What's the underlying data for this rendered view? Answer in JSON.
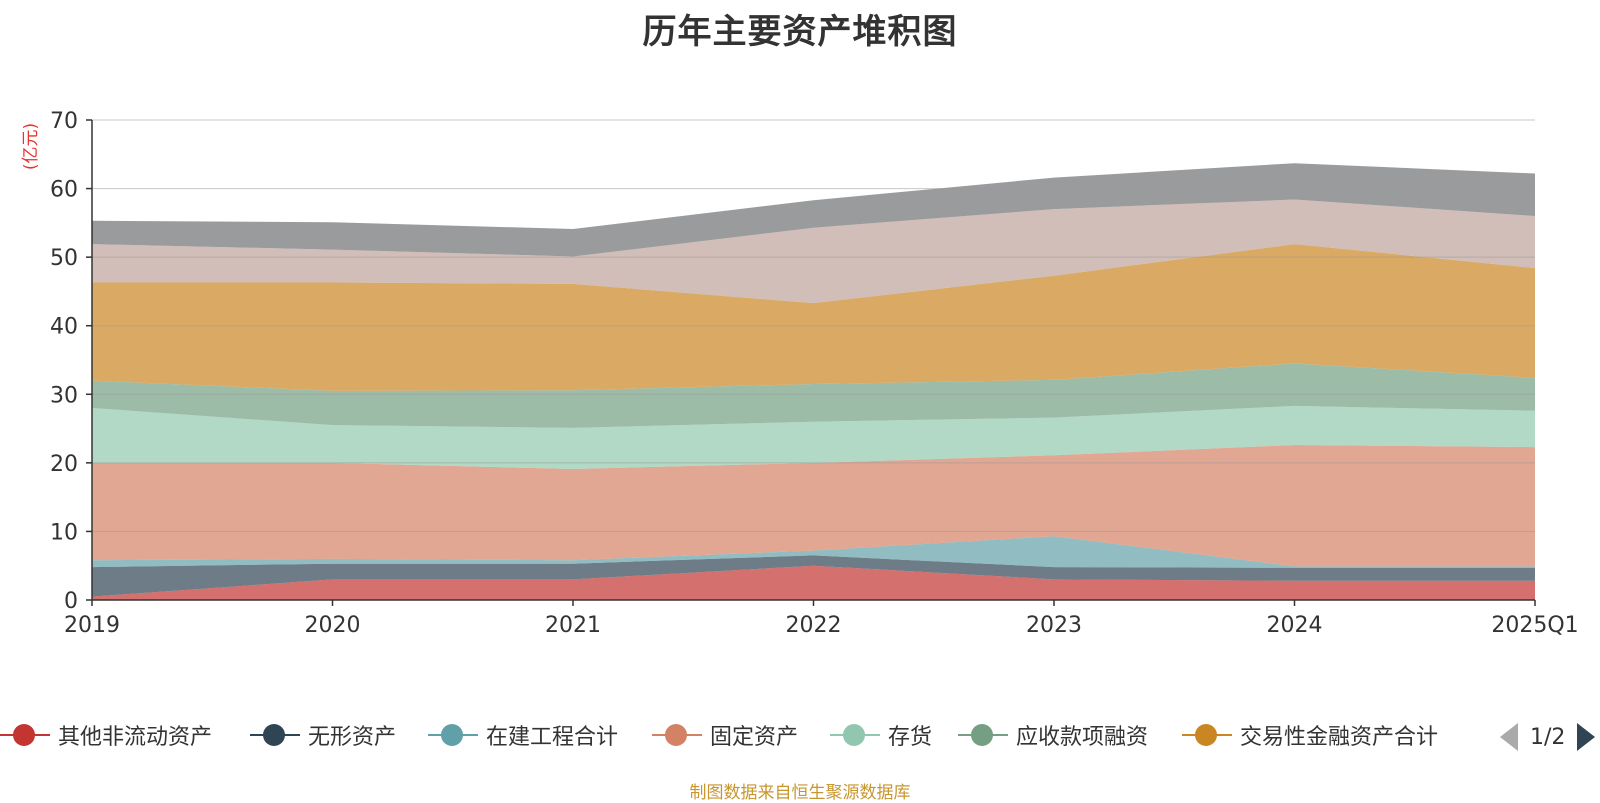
{
  "title": "历年主要资产堆积图",
  "source": "制图数据来自恒生聚源数据库",
  "pager": {
    "text": "1/2"
  },
  "chart_data": {
    "type": "area",
    "stacked": true,
    "unit_label": "(亿元)",
    "categories": [
      "2019",
      "2020",
      "2021",
      "2022",
      "2023",
      "2024",
      "2025Q1"
    ],
    "ylim": [
      0,
      70
    ],
    "yticks": [
      0,
      10,
      20,
      30,
      40,
      50,
      60,
      70
    ],
    "grid": true,
    "legend_position": "bottom",
    "series": [
      {
        "name": "其他非流动资产",
        "color": "#c23531",
        "values": [
          0.5,
          3.0,
          3.0,
          5.0,
          3.0,
          2.8,
          2.8
        ],
        "in_legend": true
      },
      {
        "name": "无形资产",
        "color": "#2f4554",
        "values": [
          4.3,
          2.3,
          2.3,
          1.5,
          1.8,
          1.9,
          1.9
        ],
        "in_legend": true
      },
      {
        "name": "在建工程合计",
        "color": "#61a0a8",
        "values": [
          1.0,
          0.7,
          0.5,
          0.7,
          4.5,
          0.2,
          0.2
        ],
        "in_legend": true
      },
      {
        "name": "固定资产",
        "color": "#d48265",
        "values": [
          14.2,
          14.0,
          13.3,
          12.8,
          11.8,
          17.7,
          17.4
        ],
        "in_legend": true
      },
      {
        "name": "存货",
        "color": "#91c7ae",
        "values": [
          8.0,
          5.5,
          6.0,
          6.0,
          5.5,
          5.7,
          5.3
        ],
        "in_legend": true
      },
      {
        "name": "应收款项融资",
        "color": "#749f83",
        "values": [
          4.0,
          5.0,
          5.5,
          5.5,
          5.5,
          6.2,
          4.8
        ],
        "in_legend": true
      },
      {
        "name": "交易性金融资产合计",
        "color": "#ca8622",
        "values": [
          14.3,
          15.8,
          15.5,
          11.8,
          15.2,
          17.4,
          16.0
        ],
        "in_legend": true
      },
      {
        "name": "",
        "color": "#bda29a",
        "values": [
          5.6,
          4.8,
          4.0,
          11.0,
          9.7,
          6.5,
          7.6
        ],
        "in_legend": false
      },
      {
        "name": "",
        "color": "#6e7074",
        "values": [
          3.4,
          4.0,
          4.0,
          4.0,
          4.6,
          5.3,
          6.2
        ],
        "in_legend": false
      }
    ]
  }
}
